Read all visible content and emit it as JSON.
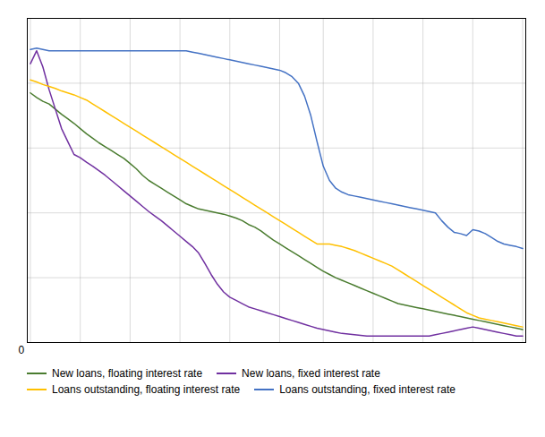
{
  "chart_data": {
    "type": "line",
    "categories": [
      null,
      null,
      null,
      null,
      null,
      null,
      null,
      null,
      null,
      null,
      null,
      null,
      null,
      null,
      null,
      null,
      null,
      null,
      null,
      null,
      null,
      null,
      null,
      null,
      null,
      null,
      null,
      null,
      null,
      null,
      null,
      null,
      null,
      null,
      null,
      null,
      null,
      null,
      null,
      null,
      null,
      null,
      null,
      null,
      null,
      null,
      null,
      null,
      null,
      null,
      null,
      null,
      null,
      null,
      null,
      null,
      null,
      null,
      null,
      null,
      null,
      null,
      null,
      null,
      null,
      null,
      null,
      null,
      null,
      null,
      null,
      null,
      null,
      null,
      null,
      null,
      null,
      null,
      null,
      null
    ],
    "series": [
      {
        "name": "New loans, floating interest rate",
        "color": "#4a7c2f",
        "values": [
          3.85,
          3.78,
          3.72,
          3.68,
          3.6,
          3.52,
          3.45,
          3.38,
          3.3,
          3.22,
          3.15,
          3.08,
          3.02,
          2.96,
          2.9,
          2.84,
          2.76,
          2.68,
          2.58,
          2.5,
          2.44,
          2.38,
          2.32,
          2.26,
          2.2,
          2.14,
          2.1,
          2.06,
          2.04,
          2.02,
          2.0,
          1.98,
          1.95,
          1.92,
          1.88,
          1.82,
          1.78,
          1.72,
          1.65,
          1.58,
          1.52,
          1.46,
          1.4,
          1.34,
          1.28,
          1.22,
          1.16,
          1.1,
          1.05,
          1.0,
          0.96,
          0.92,
          0.88,
          0.84,
          0.8,
          0.76,
          0.72,
          0.68,
          0.64,
          0.6,
          0.58,
          0.56,
          0.54,
          0.52,
          0.5,
          0.48,
          0.46,
          0.44,
          0.42,
          0.4,
          0.38,
          0.36,
          0.34,
          0.32,
          0.3,
          0.28,
          0.26,
          0.24,
          0.22,
          0.2
        ]
      },
      {
        "name": "New loans, fixed interest rate",
        "color": "#7030a0",
        "values": [
          4.3,
          4.5,
          4.25,
          3.9,
          3.6,
          3.3,
          3.1,
          2.9,
          2.85,
          2.78,
          2.72,
          2.65,
          2.58,
          2.5,
          2.42,
          2.34,
          2.26,
          2.18,
          2.1,
          2.02,
          1.95,
          1.88,
          1.8,
          1.72,
          1.64,
          1.56,
          1.48,
          1.38,
          1.22,
          1.05,
          0.9,
          0.78,
          0.7,
          0.65,
          0.6,
          0.55,
          0.52,
          0.49,
          0.46,
          0.43,
          0.4,
          0.37,
          0.34,
          0.31,
          0.28,
          0.25,
          0.22,
          0.2,
          0.18,
          0.16,
          0.14,
          0.13,
          0.12,
          0.11,
          0.1,
          0.1,
          0.1,
          0.1,
          0.1,
          0.1,
          0.1,
          0.1,
          0.1,
          0.1,
          0.1,
          0.12,
          0.14,
          0.16,
          0.18,
          0.2,
          0.22,
          0.24,
          0.22,
          0.2,
          0.18,
          0.16,
          0.14,
          0.12,
          0.1,
          0.1
        ]
      },
      {
        "name": "Loans outstanding, floating interest rate",
        "color": "#ffc000",
        "values": [
          4.05,
          4.02,
          3.98,
          3.95,
          3.92,
          3.88,
          3.85,
          3.82,
          3.78,
          3.74,
          3.68,
          3.62,
          3.56,
          3.5,
          3.44,
          3.38,
          3.32,
          3.26,
          3.2,
          3.14,
          3.08,
          3.02,
          2.96,
          2.9,
          2.84,
          2.78,
          2.72,
          2.66,
          2.6,
          2.54,
          2.48,
          2.42,
          2.36,
          2.3,
          2.24,
          2.18,
          2.12,
          2.06,
          2.0,
          1.94,
          1.88,
          1.82,
          1.76,
          1.7,
          1.64,
          1.58,
          1.52,
          1.52,
          1.52,
          1.5,
          1.48,
          1.45,
          1.42,
          1.38,
          1.34,
          1.3,
          1.26,
          1.22,
          1.18,
          1.12,
          1.06,
          1.0,
          0.94,
          0.88,
          0.82,
          0.76,
          0.7,
          0.64,
          0.58,
          0.52,
          0.46,
          0.42,
          0.38,
          0.36,
          0.34,
          0.32,
          0.3,
          0.28,
          0.26,
          0.24
        ]
      },
      {
        "name": "Loans outstanding, fixed interest rate",
        "color": "#4472c4",
        "values": [
          4.52,
          4.54,
          4.52,
          4.5,
          4.5,
          4.5,
          4.5,
          4.5,
          4.5,
          4.5,
          4.5,
          4.5,
          4.5,
          4.5,
          4.5,
          4.5,
          4.5,
          4.5,
          4.5,
          4.5,
          4.5,
          4.5,
          4.5,
          4.5,
          4.5,
          4.5,
          4.48,
          4.46,
          4.44,
          4.42,
          4.4,
          4.38,
          4.36,
          4.34,
          4.32,
          4.3,
          4.28,
          4.26,
          4.24,
          4.22,
          4.2,
          4.16,
          4.1,
          4.0,
          3.8,
          3.5,
          3.1,
          2.72,
          2.5,
          2.38,
          2.32,
          2.28,
          2.26,
          2.24,
          2.22,
          2.2,
          2.18,
          2.16,
          2.14,
          2.12,
          2.1,
          2.08,
          2.06,
          2.04,
          2.02,
          2.0,
          1.88,
          1.78,
          1.7,
          1.68,
          1.65,
          1.74,
          1.72,
          1.68,
          1.62,
          1.56,
          1.52,
          1.5,
          1.48,
          1.45
        ]
      }
    ],
    "ylim": [
      0,
      5.0
    ],
    "yticks": [
      0,
      1,
      2,
      3,
      4,
      5
    ],
    "grid": true,
    "tick_labels": false,
    "legend": "lower left",
    "annotations": [
      "0"
    ]
  }
}
